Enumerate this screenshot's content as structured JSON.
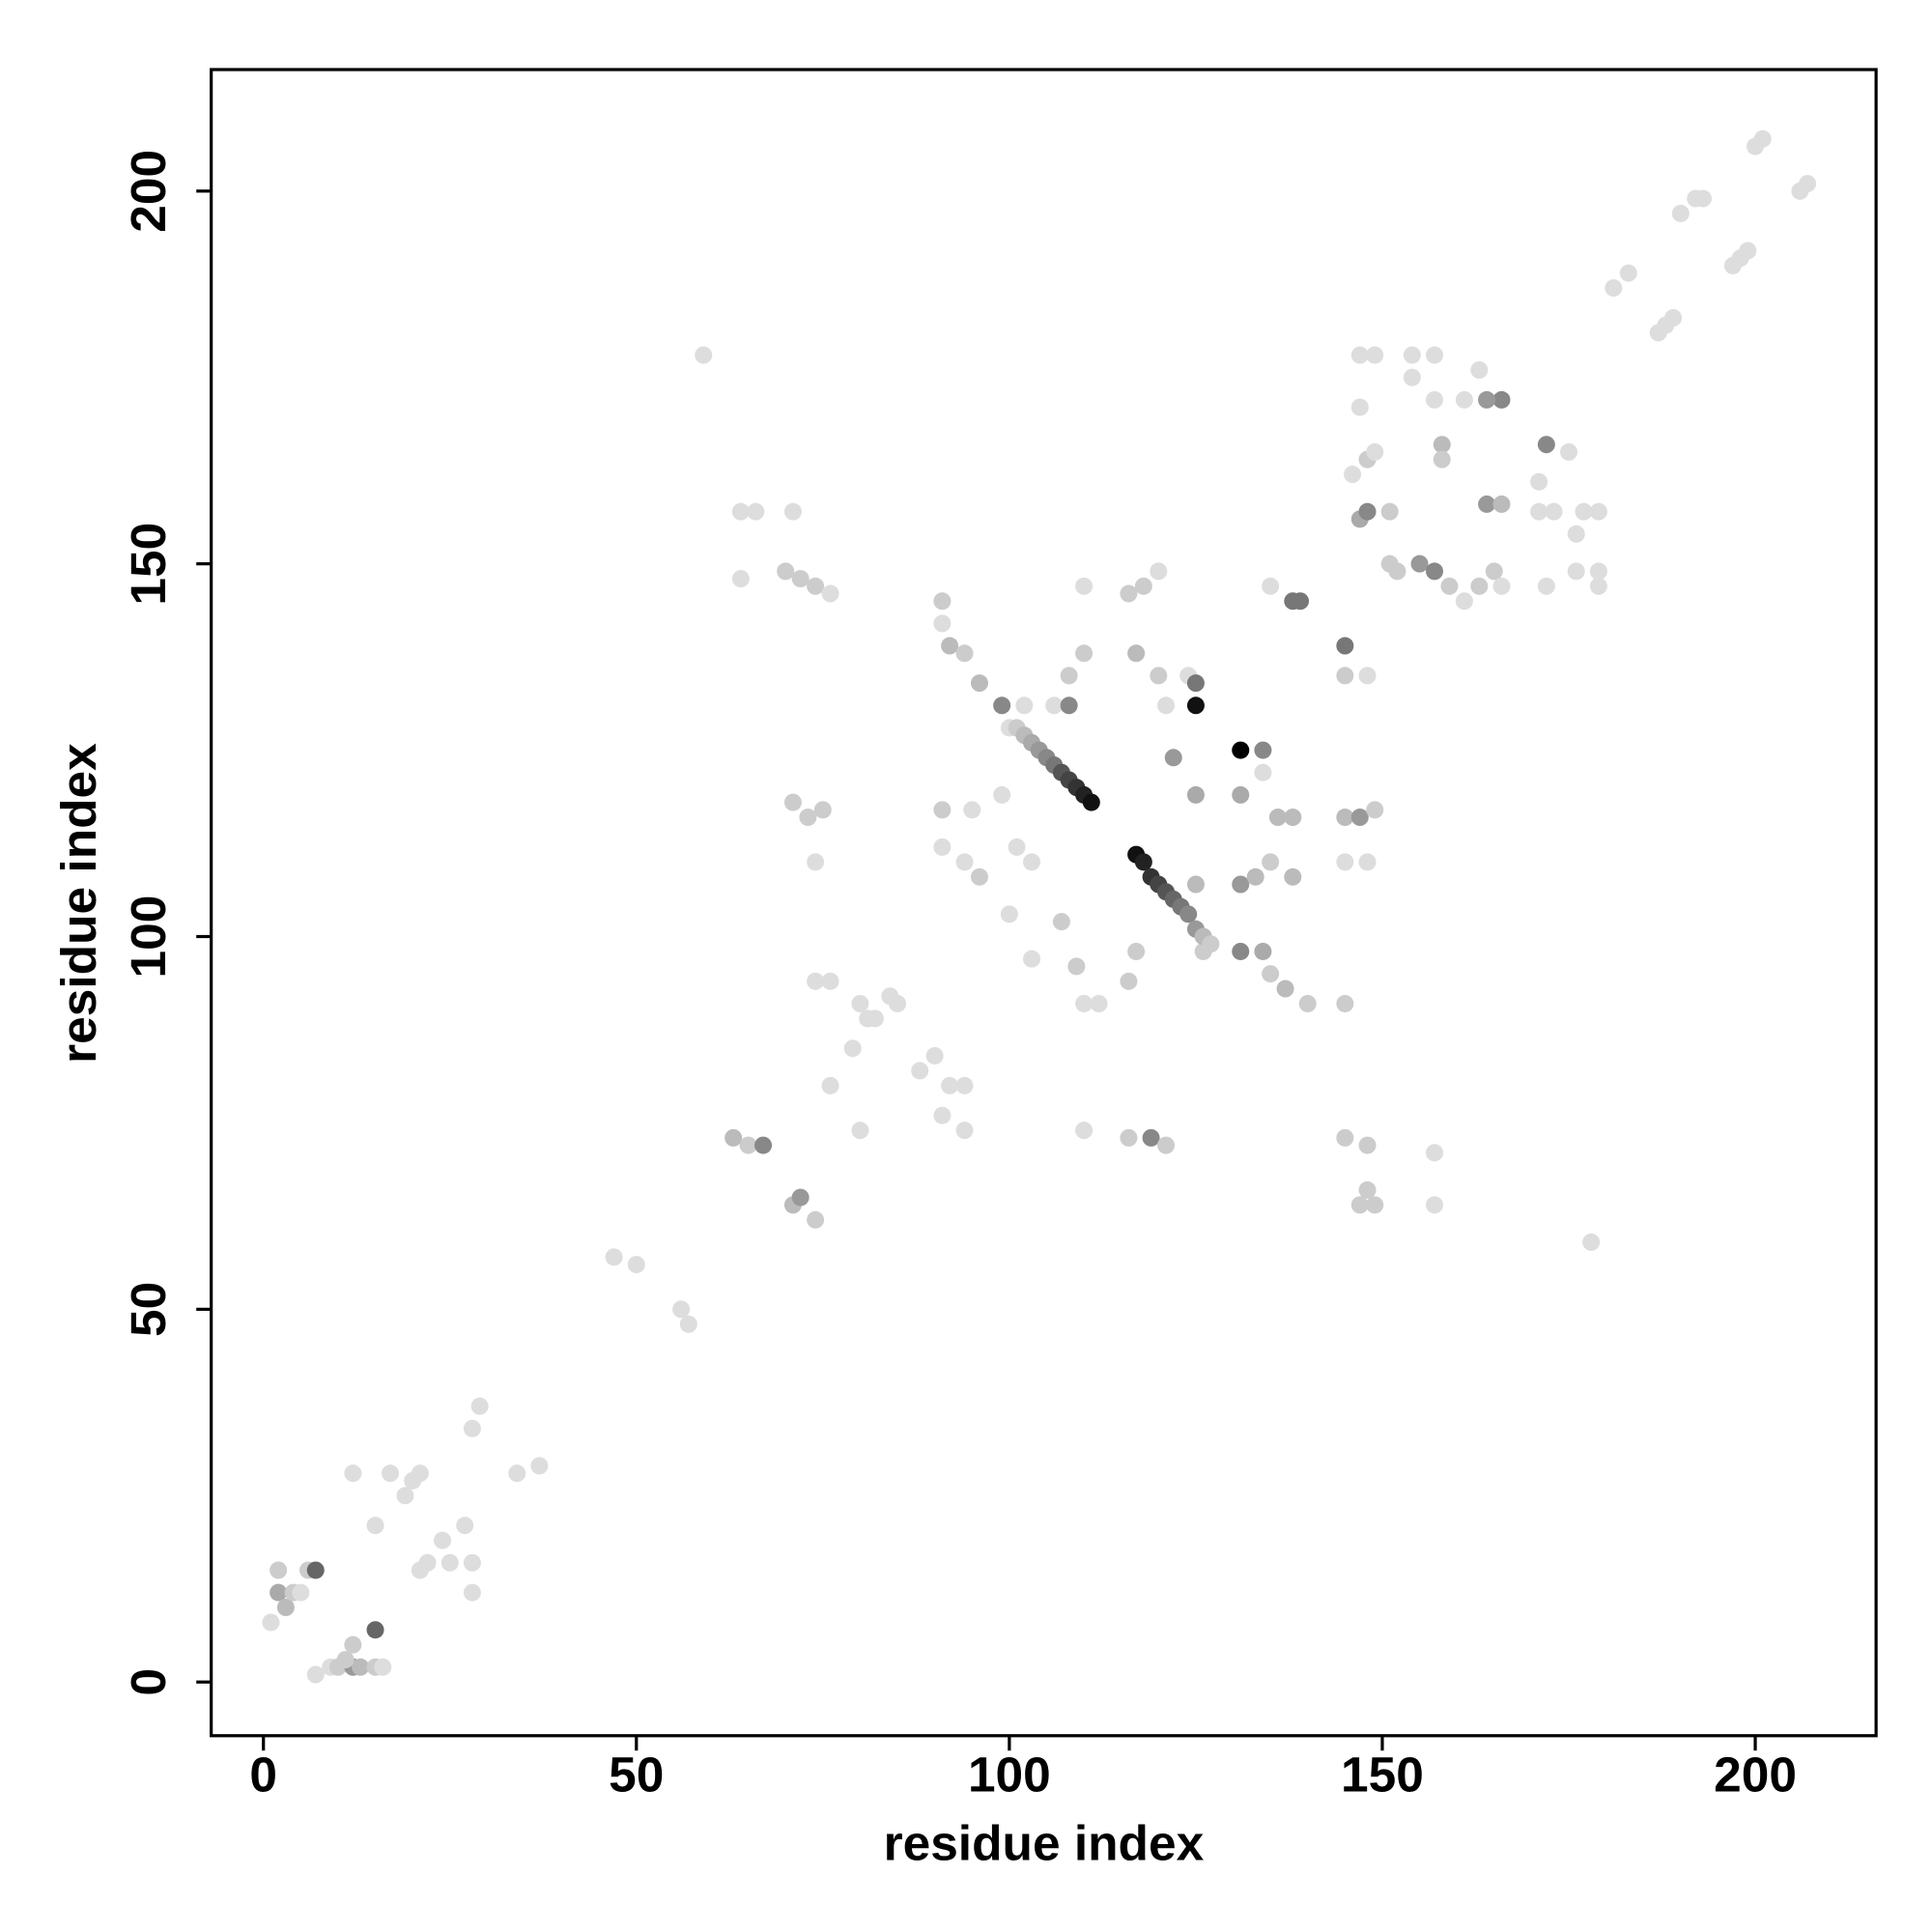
{
  "chart_data": {
    "type": "scatter",
    "xlabel": "residue index",
    "ylabel": "residue index",
    "xlim": [
      -7,
      216.2
    ],
    "ylim": [
      -7.2,
      216.3
    ],
    "xticks": [
      0,
      50,
      100,
      150,
      200
    ],
    "yticks": [
      0,
      50,
      100,
      150,
      200
    ],
    "x": [
      2,
      2,
      3,
      4,
      5,
      6,
      7,
      1,
      9,
      10,
      12,
      12,
      13,
      15,
      15,
      16,
      7,
      11,
      15,
      17,
      12,
      19,
      20,
      21,
      21,
      22,
      24,
      25,
      27,
      28,
      28,
      28,
      29,
      34,
      37,
      47,
      50,
      56,
      57,
      59,
      64,
      66,
      71,
      64,
      70,
      72,
      74,
      76,
      63,
      65,
      67,
      71,
      72,
      74,
      71,
      73,
      75,
      74,
      74,
      76,
      80,
      82,
      84,
      85,
      79,
      81,
      76,
      80,
      88,
      90,
      92,
      94,
      94,
      91,
      91,
      91,
      92,
      94,
      96,
      99,
      100,
      102,
      106,
      108,
      108,
      110,
      110,
      116,
      118,
      120,
      117,
      120,
      121,
      124,
      125,
      125,
      122,
      125,
      131,
      134,
      131,
      134,
      136,
      138,
      135,
      138,
      139,
      145,
      145,
      148,
      91,
      95,
      91,
      94,
      96,
      101,
      103,
      99,
      100,
      103,
      107,
      109,
      110,
      112,
      116,
      117,
      126,
      131,
      134,
      135,
      137,
      140,
      145,
      131,
      133,
      135,
      138,
      125,
      116,
      119,
      121,
      110,
      145,
      148,
      147,
      149,
      148,
      157,
      157,
      178,
      145,
      147,
      149,
      145,
      148,
      146,
      148,
      149,
      147,
      148,
      151,
      147,
      149,
      147,
      151,
      152,
      155,
      157,
      159,
      161,
      163,
      165,
      166,
      154,
      157,
      154,
      157,
      158,
      158,
      163,
      166,
      164,
      161,
      164,
      166,
      172,
      171,
      175,
      171,
      173,
      177,
      176,
      179,
      179,
      176,
      172,
      179,
      181,
      183,
      187,
      188,
      189,
      190,
      192,
      193,
      197,
      198,
      199,
      200,
      201,
      206,
      207,
      101,
      102,
      103,
      104,
      105,
      106,
      107,
      108,
      109,
      110,
      111,
      117,
      118,
      119,
      120,
      121,
      122,
      123,
      124,
      125,
      126,
      127
    ],
    "values": [
      12,
      15,
      10,
      12,
      12,
      15,
      15,
      8,
      2,
      2,
      2,
      5,
      2,
      7,
      2,
      2,
      1,
      3,
      21,
      28,
      28,
      25,
      27,
      28,
      15,
      16,
      19,
      16,
      21,
      16,
      12,
      34,
      37,
      28,
      29,
      57,
      56,
      50,
      48,
      178,
      157,
      157,
      157,
      148,
      149,
      148,
      147,
      146,
      73,
      72,
      72,
      64,
      65,
      62,
      118,
      116,
      117,
      110,
      94,
      94,
      91,
      89,
      92,
      91,
      85,
      89,
      80,
      74,
      82,
      84,
      80,
      80,
      74,
      76,
      145,
      142,
      139,
      138,
      134,
      131,
      128,
      131,
      131,
      131,
      135,
      138,
      147,
      146,
      147,
      149,
      138,
      135,
      131,
      135,
      134,
      131,
      124,
      119,
      125,
      125,
      119,
      122,
      116,
      116,
      147,
      145,
      145,
      139,
      135,
      135,
      117,
      117,
      112,
      110,
      108,
      112,
      110,
      119,
      103,
      97,
      102,
      96,
      91,
      91,
      94,
      98,
      98,
      98,
      98,
      95,
      93,
      91,
      91,
      107,
      108,
      110,
      108,
      107,
      73,
      73,
      72,
      74,
      73,
      72,
      64,
      64,
      66,
      71,
      64,
      59,
      116,
      116,
      117,
      110,
      110,
      162,
      164,
      165,
      156,
      157,
      157,
      178,
      178,
      171,
      150,
      149,
      150,
      149,
      147,
      145,
      147,
      149,
      147,
      178,
      178,
      175,
      172,
      166,
      164,
      176,
      172,
      172,
      172,
      158,
      158,
      166,
      161,
      165,
      157,
      157,
      157,
      154,
      157,
      149,
      149,
      147,
      147,
      187,
      189,
      181,
      182,
      183,
      197,
      199,
      199,
      190,
      191,
      192,
      206,
      207,
      200,
      201,
      128,
      127,
      126,
      125,
      124,
      123,
      122,
      121,
      120,
      119,
      118,
      111,
      110,
      108,
      107,
      106,
      105,
      104,
      103,
      101,
      100,
      99
    ],
    "colors": [
      "#aaa",
      "#ccc",
      "#bbb",
      "#ccc",
      "#ddd",
      "#ccc",
      "#666",
      "#ddd",
      "#ddd",
      "#ccc",
      "#999",
      "#ccc",
      "#bbb",
      "#666",
      "#ccc",
      "#ddd",
      "#ddd",
      "#ccc",
      "#ddd",
      "#ddd",
      "#ddd",
      "#ddd",
      "#ddd",
      "#ddd",
      "#ddd",
      "#ddd",
      "#ddd",
      "#ddd",
      "#ddd",
      "#ddd",
      "#ddd",
      "#ddd",
      "#ddd",
      "#ddd",
      "#ddd",
      "#ddd",
      "#ddd",
      "#ddd",
      "#ddd",
      "#ddd",
      "#ddd",
      "#ddd",
      "#ddd",
      "#ddd",
      "#ccc",
      "#ccc",
      "#ccc",
      "#ddd",
      "#bbb",
      "#ccc",
      "#888",
      "#bbb",
      "#999",
      "#ccc",
      "#ccc",
      "#ccc",
      "#ccc",
      "#ddd",
      "#ddd",
      "#ddd",
      "#ddd",
      "#ddd",
      "#ddd",
      "#ddd",
      "#ddd",
      "#ddd",
      "#ddd",
      "#ddd",
      "#ddd",
      "#ddd",
      "#ddd",
      "#ddd",
      "#ddd",
      "#ddd",
      "#ccc",
      "#ddd",
      "#bbb",
      "#ccc",
      "#bbb",
      "#888",
      "#ddd",
      "#ddd",
      "#ddd",
      "#888",
      "#ccc",
      "#ccc",
      "#ddd",
      "#ccc",
      "#ccc",
      "#ddd",
      "#bbb",
      "#ccc",
      "#ddd",
      "#ddd",
      "#777",
      "#111",
      "#999",
      "#aaa",
      "#000",
      "#888",
      "#aaa",
      "#ddd",
      "#bbb",
      "#bbb",
      "#ddd",
      "#777",
      "#777",
      "#777",
      "#ccc",
      "#ddd",
      "#ccc",
      "#ddd",
      "#ddd",
      "#ddd",
      "#ccc",
      "#ddd",
      "#ddd",
      "#ddd",
      "#ddd",
      "#ddd",
      "#ccc",
      "#ccc",
      "#ddd",
      "#ddd",
      "#ccc",
      "#ccc",
      "#ccc",
      "#888",
      "#aaa",
      "#ccc",
      "#bbb",
      "#ccc",
      "#ccc",
      "#999",
      "#bbb",
      "#ccc",
      "#bbb",
      "#bbb",
      "#ccc",
      "#888",
      "#ccc",
      "#ddd",
      "#ccc",
      "#ccc",
      "#ccc",
      "#ccc",
      "#ccc",
      "#ddd",
      "#ddd",
      "#ddd",
      "#bbb",
      "#999",
      "#ccc",
      "#ddd",
      "#ddd",
      "#ddd",
      "#ccc",
      "#ddd",
      "#aaa",
      "#888",
      "#ccc",
      "#ddd",
      "#ddd",
      "#ddd",
      "#ccc",
      "#ccc",
      "#999",
      "#888",
      "#ccc",
      "#ddd",
      "#ccc",
      "#ccc",
      "#ddd",
      "#ddd",
      "#ddd",
      "#ddd",
      "#ddd",
      "#bbb",
      "#ccc",
      "#ddd",
      "#888",
      "#999",
      "#ddd",
      "#999",
      "#bbb",
      "#888",
      "#ddd",
      "#ddd",
      "#ddd",
      "#ddd",
      "#ddd",
      "#ddd",
      "#ddd",
      "#ddd",
      "#ddd",
      "#ddd",
      "#ddd",
      "#ddd",
      "#ddd",
      "#ddd",
      "#ddd",
      "#ddd",
      "#ddd",
      "#ddd",
      "#ddd",
      "#ddd",
      "#ddd",
      "#ddd",
      "#ddd",
      "#ddd",
      "#ddd",
      "#ddd",
      "#ccc",
      "#bbb",
      "#aaa",
      "#999",
      "#888",
      "#777",
      "#555",
      "#444",
      "#333",
      "#222",
      "#111",
      "#111",
      "#222",
      "#333",
      "#444",
      "#555",
      "#666",
      "#777",
      "#888",
      "#999",
      "#bbb",
      "#ccc"
    ]
  }
}
